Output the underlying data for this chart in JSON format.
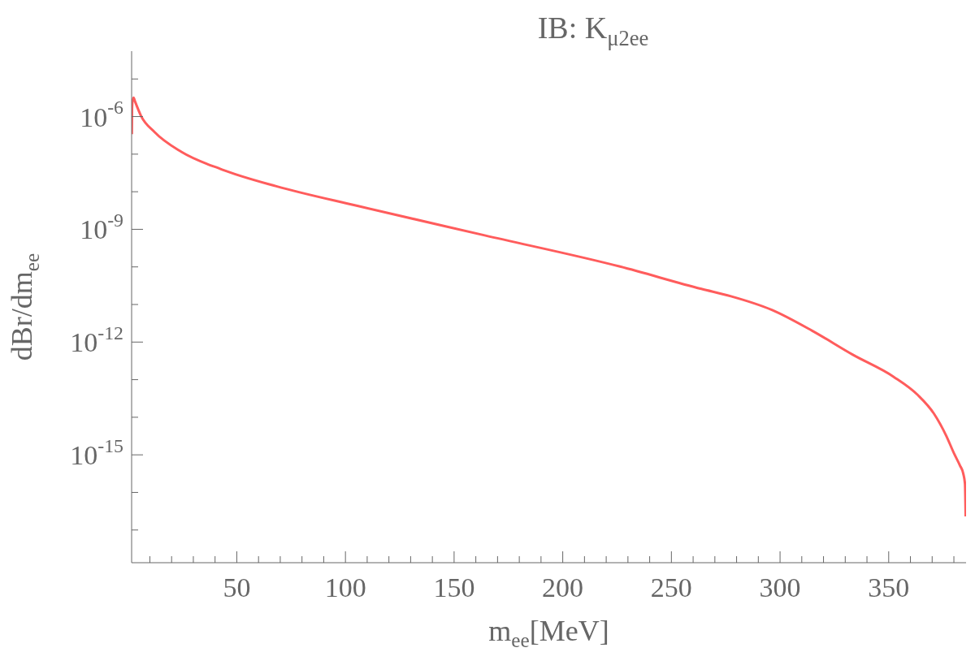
{
  "chart_data": {
    "type": "line",
    "title": "IB: K$_{μ2ee}$",
    "xlabel": "m$_{ee}$[MeV]",
    "ylabel": "dBr/dm$_{ee}$",
    "log": "y",
    "grid": false,
    "legend": false,
    "marker": "none",
    "line_style": "solid",
    "xlim": [
      1.6,
      385.6
    ],
    "xticks": [
      {
        "value": 10,
        "label": null
      },
      {
        "value": 20,
        "label": null
      },
      {
        "value": 30,
        "label": null
      },
      {
        "value": 40,
        "label": null
      },
      50,
      {
        "value": 60,
        "label": null
      },
      {
        "value": 70,
        "label": null
      },
      {
        "value": 80,
        "label": null
      },
      {
        "value": 90,
        "label": null
      },
      100,
      {
        "value": 110,
        "label": null
      },
      {
        "value": 120,
        "label": null
      },
      {
        "value": 130,
        "label": null
      },
      {
        "value": 140,
        "label": null
      },
      150,
      {
        "value": 160,
        "label": null
      },
      {
        "value": 170,
        "label": null
      },
      {
        "value": 180,
        "label": null
      },
      {
        "value": 190,
        "label": null
      },
      200,
      {
        "value": 210,
        "label": null
      },
      {
        "value": 220,
        "label": null
      },
      {
        "value": 230,
        "label": null
      },
      {
        "value": 240,
        "label": null
      },
      250,
      {
        "value": 260,
        "label": null
      },
      {
        "value": 270,
        "label": null
      },
      {
        "value": 280,
        "label": null
      },
      {
        "value": 290,
        "label": null
      },
      300,
      {
        "value": 310,
        "label": null
      },
      {
        "value": 320,
        "label": null
      },
      {
        "value": 330,
        "label": null
      },
      {
        "value": 340,
        "label": null
      },
      350,
      {
        "value": 360,
        "label": null
      },
      {
        "value": 370,
        "label": null
      },
      {
        "value": 380,
        "label": null
      }
    ],
    "ylim": [
      1.35e-18,
      5.5e-05
    ],
    "yticks": [
      {
        "value": 1e-05,
        "label": null
      },
      {
        "value": 1e-06,
        "label": "10$^{-6}$"
      },
      {
        "value": 1e-07,
        "label": null
      },
      {
        "value": 1e-08,
        "label": null
      },
      {
        "value": 1e-09,
        "label": "10$^{-9}$"
      },
      {
        "value": 1e-10,
        "label": null
      },
      {
        "value": 1e-11,
        "label": null
      },
      {
        "value": 1e-12,
        "label": "10$^{-12}$"
      },
      {
        "value": 1e-13,
        "label": null
      },
      {
        "value": 1e-14,
        "label": null
      },
      {
        "value": 1e-15,
        "label": "10$^{-15}$"
      },
      {
        "value": 1e-16,
        "label": null
      },
      {
        "value": 1e-17,
        "label": null
      }
    ],
    "series": [
      {
        "color": "#ff5c5c",
        "x": [
          1.7,
          1.8,
          2.0,
          2.5,
          3.2,
          5.9,
          12.1,
          24.5,
          43.2,
          68.2,
          105.5,
          164.1,
          226.4,
          263.8,
          277.4,
          296.2,
          314.8,
          333.5,
          352.2,
          363.4,
          370.9,
          376.5,
          380.2,
          382.8,
          384.3,
          385.1,
          385.4
        ],
        "values": [
          3.4e-07,
          1.6e-06,
          2.5e-06,
          3.2e-06,
          2.5e-06,
          1.05e-06,
          3.9e-07,
          1.15e-07,
          3.9e-08,
          1.4e-08,
          4.2e-09,
          6.9e-10,
          1.02e-10,
          2.6e-11,
          1.66e-11,
          7.2e-12,
          2e-12,
          4.6e-13,
          1.2e-13,
          3.9e-14,
          1.23e-14,
          3.2e-15,
          1.05e-15,
          5.2e-16,
          3.2e-16,
          1.7e-16,
          2.3e-17
        ]
      }
    ]
  }
}
